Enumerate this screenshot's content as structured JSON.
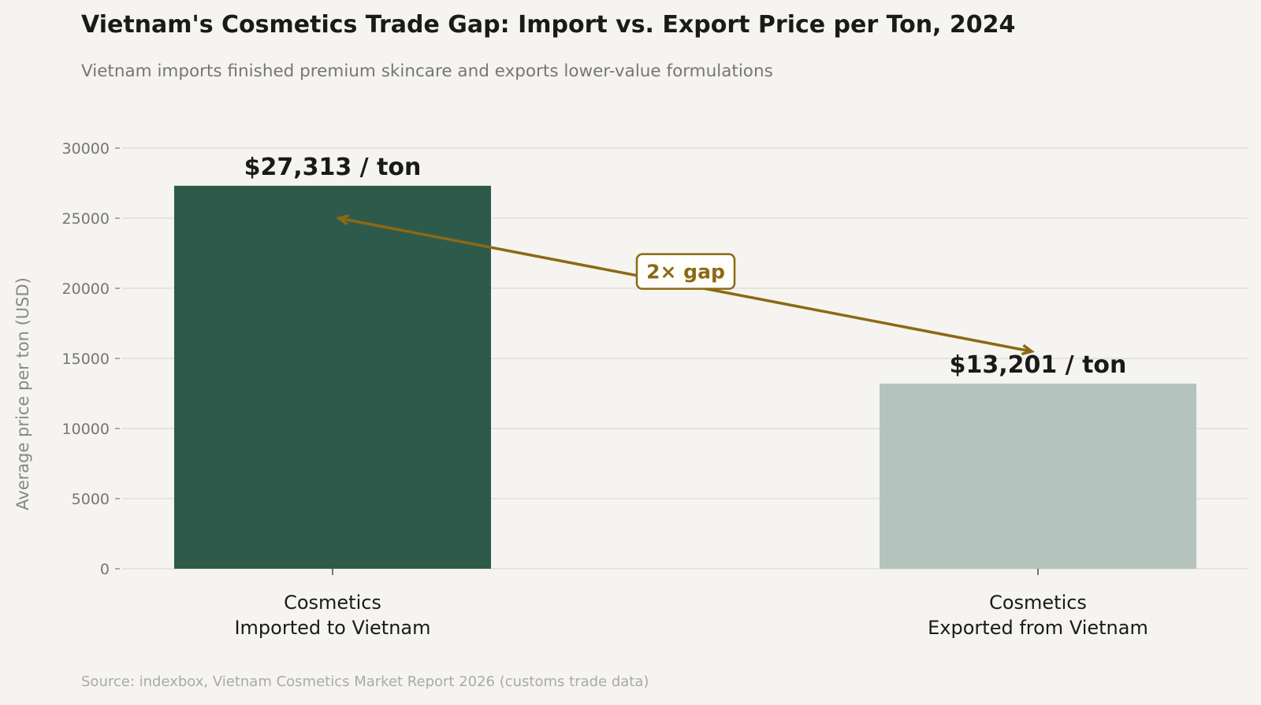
{
  "chart_data": {
    "type": "bar",
    "title": "Vietnam's Cosmetics Trade Gap: Import vs. Export Price per Ton, 2024",
    "subtitle": "Vietnam imports finished premium skincare and exports lower-value formulations",
    "ylabel": "Average price per ton (USD)",
    "xlabel": "",
    "ylim": [
      0,
      30000
    ],
    "yticks": [
      0,
      5000,
      10000,
      15000,
      20000,
      25000,
      30000
    ],
    "grid": true,
    "categories": [
      "Cosmetics\nImported to Vietnam",
      "Cosmetics\nExported from Vietnam"
    ],
    "values": [
      27313,
      13201
    ],
    "data_labels": [
      "$27,313 / ton",
      "$13,201 / ton"
    ],
    "colors": [
      "#2e5a4b",
      "#b4c3bd"
    ],
    "annotation": {
      "text": "2× gap",
      "color": "#8b6914",
      "arrow_from": 15500,
      "arrow_to": 25000,
      "label_y": 21200
    },
    "source": "Source: indexbox, Vietnam Cosmetics Market Report 2026 (customs trade data)"
  }
}
